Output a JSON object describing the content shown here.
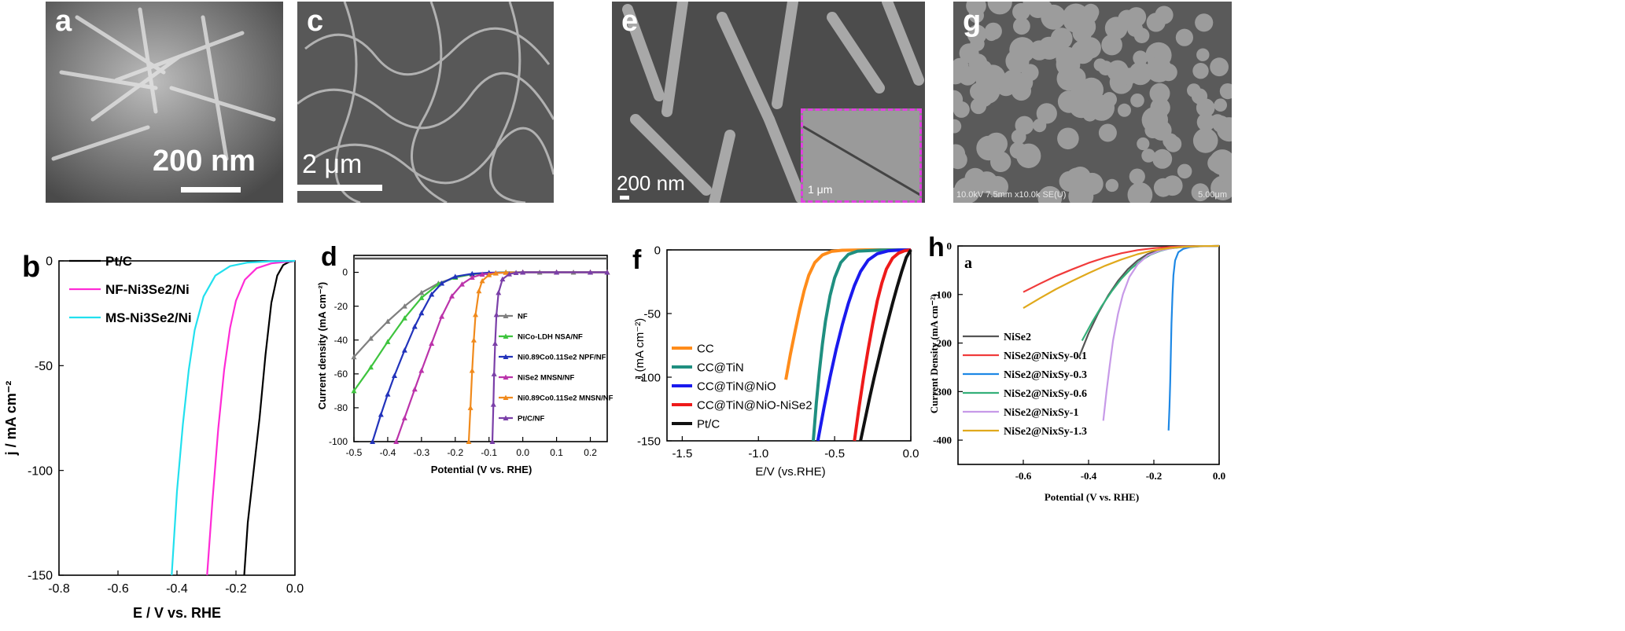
{
  "panels_sem": [
    {
      "letter": "a",
      "scale_label": "200 nm"
    },
    {
      "letter": "c",
      "scale_label": "2 μm"
    },
    {
      "letter": "e",
      "scale_label": "200 nm",
      "inset_label": "1 μm"
    },
    {
      "letter": "g",
      "info_left": "10.0kV 7.5mm x10.0k SE(U)",
      "info_right": "5.00μm"
    }
  ],
  "chart_data": [
    {
      "type": "line",
      "letter": "b",
      "xlabel": "E / V vs. RHE",
      "ylabel": "j / mA cm⁻²",
      "xlim": [
        -0.8,
        0.0
      ],
      "ylim": [
        -150,
        0
      ],
      "xticks": [
        "-0.8",
        "-0.6",
        "-0.4",
        "-0.2",
        "0.0"
      ],
      "yticks": [
        "0",
        "-50",
        "-100",
        "-150"
      ],
      "legend": "top-left",
      "series": [
        {
          "name": "Pt/C",
          "color": "#000000",
          "x": [
            -0.172,
            -0.16,
            -0.14,
            -0.12,
            -0.1,
            -0.08,
            -0.06,
            -0.04,
            -0.02,
            0.0
          ],
          "y": [
            -150,
            -125,
            -100,
            -75,
            -45,
            -20,
            -7,
            -2,
            -0.5,
            0
          ]
        },
        {
          "name": "NF-Ni3Se2/Ni",
          "color": "#ff2bd6",
          "x": [
            -0.298,
            -0.28,
            -0.26,
            -0.24,
            -0.22,
            -0.2,
            -0.17,
            -0.13,
            -0.08,
            -0.03,
            0.0
          ],
          "y": [
            -150,
            -115,
            -80,
            -52,
            -32,
            -19,
            -9,
            -3.5,
            -1.2,
            -0.4,
            0
          ]
        },
        {
          "name": "MS-Ni3Se2/Ni",
          "color": "#22e0ee",
          "x": [
            -0.418,
            -0.4,
            -0.38,
            -0.36,
            -0.34,
            -0.31,
            -0.27,
            -0.22,
            -0.16,
            -0.08,
            0.0
          ],
          "y": [
            -150,
            -110,
            -78,
            -52,
            -33,
            -17,
            -7,
            -2.5,
            -0.8,
            -0.2,
            0
          ]
        }
      ]
    },
    {
      "type": "line",
      "letter": "d",
      "xlabel": "Potential (V vs. RHE)",
      "ylabel": "Current density (mA cm⁻²)",
      "xlim": [
        -0.5,
        0.25
      ],
      "ylim": [
        -100,
        10
      ],
      "xticks": [
        "-0.5",
        "-0.4",
        "-0.3",
        "-0.2",
        "-0.1",
        "0.0",
        "0.1",
        "0.2"
      ],
      "yticks": [
        "0",
        "-20",
        "-40",
        "-60",
        "-80",
        "-100"
      ],
      "legend": "right",
      "series": [
        {
          "name": "NF",
          "color": "#7f7f7f",
          "x": [
            -0.5,
            -0.45,
            -0.4,
            -0.35,
            -0.3,
            -0.25,
            -0.2,
            -0.15,
            -0.1,
            -0.05,
            0.0,
            0.05,
            0.1,
            0.15,
            0.2,
            0.25
          ],
          "y": [
            -50,
            -39,
            -29,
            -20,
            -12,
            -6.5,
            -3,
            -1.2,
            -0.4,
            0,
            0,
            0,
            0,
            0,
            0,
            0
          ]
        },
        {
          "name": "NiCo-LDH NSA/NF",
          "color": "#3ec43e",
          "x": [
            -0.5,
            -0.45,
            -0.4,
            -0.35,
            -0.3,
            -0.25,
            -0.2,
            -0.15,
            -0.1,
            -0.05,
            0.0,
            0.1,
            0.2,
            0.25
          ],
          "y": [
            -70,
            -56,
            -41,
            -27,
            -15,
            -7,
            -3,
            -1,
            -0.3,
            0,
            0,
            0,
            0,
            0
          ]
        },
        {
          "name": "Ni0.89Co0.11Se2 NPF/NF",
          "color": "#2233bb",
          "x": [
            -0.445,
            -0.42,
            -0.4,
            -0.38,
            -0.35,
            -0.32,
            -0.3,
            -0.27,
            -0.24,
            -0.2,
            -0.15,
            -0.1,
            0.0,
            0.1,
            0.2,
            0.25
          ],
          "y": [
            -100,
            -84,
            -72,
            -61,
            -46,
            -32,
            -24,
            -13,
            -6.5,
            -2.5,
            -0.8,
            -0.2,
            0,
            0,
            0,
            0
          ]
        },
        {
          "name": "NiSe2 MNSN/NF",
          "color": "#bb33aa",
          "x": [
            -0.375,
            -0.35,
            -0.32,
            -0.3,
            -0.27,
            -0.24,
            -0.21,
            -0.18,
            -0.15,
            -0.12,
            -0.08,
            0.0,
            0.1,
            0.2,
            0.25
          ],
          "y": [
            -100,
            -86,
            -69,
            -58,
            -42,
            -26,
            -14,
            -7,
            -3,
            -1.2,
            -0.4,
            0,
            0,
            0,
            0
          ]
        },
        {
          "name": "Ni0.89Co0.11Se2 MNSN/NF",
          "color": "#f08a1c",
          "x": [
            -0.16,
            -0.155,
            -0.15,
            -0.145,
            -0.14,
            -0.13,
            -0.12,
            -0.1,
            -0.08,
            -0.05,
            0.0,
            0.1,
            0.2,
            0.25
          ],
          "y": [
            -100,
            -80,
            -58,
            -40,
            -25,
            -11,
            -5,
            -1.5,
            -0.5,
            -0.1,
            0,
            0,
            0,
            0
          ]
        },
        {
          "name": "Pt/C/NF",
          "color": "#7a3fa8",
          "x": [
            -0.09,
            -0.087,
            -0.085,
            -0.082,
            -0.078,
            -0.072,
            -0.06,
            -0.04,
            -0.02,
            0.0,
            0.1,
            0.2,
            0.25
          ],
          "y": [
            -100,
            -78,
            -60,
            -42,
            -25,
            -12,
            -4,
            -1,
            -0.2,
            0,
            0,
            0,
            0
          ]
        }
      ]
    },
    {
      "type": "line",
      "letter": "f",
      "xlabel": "E/V (vs.RHE)",
      "ylabel": "J (mA cm⁻²)",
      "xlim": [
        -1.6,
        0.0
      ],
      "ylim": [
        -150,
        0
      ],
      "xticks": [
        "-1.5",
        "-1.0",
        "-0.5",
        "0.0"
      ],
      "yticks": [
        "0",
        "-50",
        "-100",
        "-150"
      ],
      "legend": "bottom-left",
      "series": [
        {
          "name": "CC",
          "color": "#ff8c1a",
          "x": [
            -0.82,
            -0.79,
            -0.76,
            -0.73,
            -0.7,
            -0.67,
            -0.63,
            -0.58,
            -0.52,
            -0.45,
            -0.3,
            0.0
          ],
          "y": [
            -102,
            -82,
            -64,
            -47,
            -32,
            -20,
            -10,
            -4,
            -1.2,
            -0.3,
            0,
            0
          ]
        },
        {
          "name": "CC@TiN",
          "color": "#1f8f80",
          "x": [
            -0.64,
            -0.62,
            -0.6,
            -0.58,
            -0.56,
            -0.53,
            -0.5,
            -0.46,
            -0.41,
            -0.35,
            -0.2,
            0.0
          ],
          "y": [
            -150,
            -120,
            -95,
            -74,
            -56,
            -36,
            -22,
            -10,
            -3.5,
            -1,
            -0.1,
            0
          ]
        },
        {
          "name": "CC@TiN@NiO",
          "color": "#1a1aee",
          "x": [
            -0.61,
            -0.57,
            -0.53,
            -0.49,
            -0.45,
            -0.41,
            -0.37,
            -0.33,
            -0.28,
            -0.22,
            -0.15,
            -0.08,
            0.0
          ],
          "y": [
            -150,
            -124,
            -100,
            -78,
            -59,
            -42,
            -28,
            -17,
            -8,
            -3,
            -0.8,
            -0.2,
            0
          ]
        },
        {
          "name": "CC@TiN@NiO-NiSe2",
          "color": "#ee1a1a",
          "x": [
            -0.37,
            -0.34,
            -0.31,
            -0.28,
            -0.25,
            -0.22,
            -0.19,
            -0.16,
            -0.12,
            -0.08,
            -0.04,
            0.0
          ],
          "y": [
            -150,
            -124,
            -100,
            -78,
            -58,
            -40,
            -26,
            -15,
            -6.5,
            -2.5,
            -0.6,
            0
          ]
        },
        {
          "name": "Pt/C",
          "color": "#111111",
          "x": [
            -0.33,
            -0.3,
            -0.27,
            -0.24,
            -0.21,
            -0.18,
            -0.15,
            -0.12,
            -0.09,
            -0.06,
            -0.03,
            0.0
          ],
          "y": [
            -150,
            -133,
            -116,
            -100,
            -85,
            -70,
            -56,
            -42,
            -29,
            -17,
            -6,
            0
          ]
        }
      ]
    },
    {
      "type": "line",
      "letter": "h",
      "sublabel": "a",
      "xlabel": "Potential (V vs. RHE)",
      "ylabel": "Current Density (mA cm⁻²)",
      "xlim": [
        -0.8,
        0.0
      ],
      "ylim": [
        -450,
        0
      ],
      "xticks": [
        "-0.6",
        "-0.4",
        "-0.2",
        "0.0"
      ],
      "yticks": [
        "0",
        "-100",
        "-200",
        "-300",
        "-400"
      ],
      "legend": "left",
      "series": [
        {
          "name": "NiSe2",
          "color": "#555555",
          "x": [
            -0.43,
            -0.4,
            -0.37,
            -0.34,
            -0.31,
            -0.28,
            -0.25,
            -0.22,
            -0.19,
            -0.16,
            -0.12,
            -0.08,
            0.0
          ],
          "y": [
            -230,
            -180,
            -138,
            -102,
            -72,
            -48,
            -30,
            -17,
            -9,
            -4,
            -1.5,
            -0.5,
            0
          ]
        },
        {
          "name": "NiSe2@NixSy-0.1",
          "color": "#f03b3b",
          "x": [
            -0.6,
            -0.55,
            -0.5,
            -0.45,
            -0.4,
            -0.35,
            -0.3,
            -0.25,
            -0.2,
            -0.15,
            -0.1,
            -0.05,
            0.0
          ],
          "y": [
            -95,
            -78,
            -62,
            -48,
            -35,
            -24,
            -15,
            -8.5,
            -4.5,
            -2,
            -0.8,
            -0.3,
            0
          ]
        },
        {
          "name": "NiSe2@NixSy-0.3",
          "color": "#1e88e5",
          "x": [
            -0.155,
            -0.152,
            -0.15,
            -0.148,
            -0.146,
            -0.143,
            -0.14,
            -0.135,
            -0.125,
            -0.11,
            -0.09,
            -0.06,
            0.0
          ],
          "y": [
            -380,
            -330,
            -280,
            -220,
            -160,
            -100,
            -60,
            -30,
            -13,
            -6,
            -2.5,
            -0.8,
            0
          ]
        },
        {
          "name": "NiSe2@NixSy-0.6",
          "color": "#34b07a",
          "x": [
            -0.42,
            -0.39,
            -0.36,
            -0.33,
            -0.3,
            -0.27,
            -0.24,
            -0.21,
            -0.18,
            -0.15,
            -0.1,
            -0.05,
            0.0
          ],
          "y": [
            -195,
            -158,
            -124,
            -94,
            -68,
            -47,
            -30,
            -18,
            -10,
            -5,
            -1.5,
            -0.4,
            0
          ]
        },
        {
          "name": "NiSe2@NixSy-1",
          "color": "#c79ae8",
          "x": [
            -0.355,
            -0.345,
            -0.335,
            -0.325,
            -0.31,
            -0.295,
            -0.275,
            -0.25,
            -0.22,
            -0.18,
            -0.13,
            -0.07,
            0.0
          ],
          "y": [
            -360,
            -300,
            -245,
            -195,
            -140,
            -100,
            -64,
            -38,
            -20,
            -9,
            -3,
            -0.8,
            0
          ]
        },
        {
          "name": "NiSe2@NixSy-1.3",
          "color": "#e0a91c",
          "x": [
            -0.6,
            -0.55,
            -0.5,
            -0.45,
            -0.4,
            -0.35,
            -0.3,
            -0.25,
            -0.2,
            -0.15,
            -0.1,
            -0.05,
            0.0
          ],
          "y": [
            -128,
            -108,
            -89,
            -72,
            -56,
            -41,
            -28,
            -17,
            -9,
            -4,
            -1.5,
            -0.4,
            0
          ]
        }
      ]
    }
  ]
}
